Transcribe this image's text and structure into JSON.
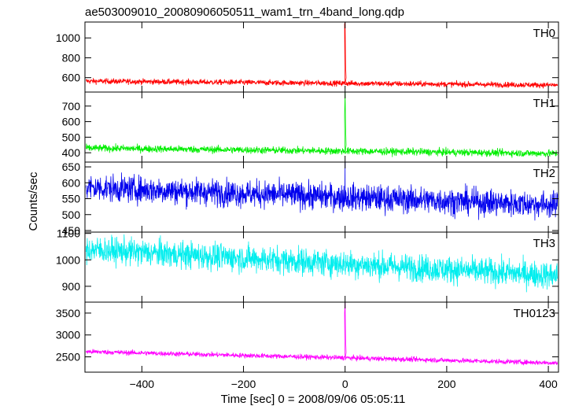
{
  "title": "ae503009010_20080906050511_wam1_trn_4band_long.qdp",
  "xlabel": "Time [sec] 0 = 2008/09/06 05:05:11",
  "ylabel": "Counts/sec",
  "chart_data": {
    "type": "line",
    "title": "ae503009010_20080906050511_wam1_trn_4band_long.qdp",
    "xlabel": "Time [sec] 0 = 2008/09/06 05:05:11",
    "ylabel": "Counts/sec",
    "xlim": [
      -512,
      420
    ],
    "xticks": [
      -400,
      -200,
      0,
      200,
      400
    ],
    "panels": [
      {
        "name": "TH0",
        "color": "#ff0000",
        "ylim": [
          455,
          1160
        ],
        "yticks": [
          600,
          800,
          1000
        ],
        "baseline_start": 565,
        "baseline_end": 525,
        "noise": 30,
        "burst": [
          {
            "x": -2,
            "y": 1140
          },
          {
            "x": 0,
            "y": 1160
          },
          {
            "x": 2,
            "y": 720
          },
          {
            "x": 4,
            "y": 600
          }
        ]
      },
      {
        "name": "TH1",
        "color": "#00ee00",
        "ylim": [
          340,
          790
        ],
        "yticks": [
          400,
          500,
          600,
          700
        ],
        "baseline_start": 430,
        "baseline_end": 395,
        "noise": 25,
        "burst": [
          {
            "x": -2,
            "y": 640
          },
          {
            "x": 0,
            "y": 790
          },
          {
            "x": 2,
            "y": 560
          },
          {
            "x": 4,
            "y": 450
          }
        ]
      },
      {
        "name": "TH2",
        "color": "#0000ee",
        "ylim": [
          445,
          665
        ],
        "yticks": [
          450,
          500,
          550,
          600,
          650
        ],
        "baseline_start": 585,
        "baseline_end": 530,
        "noise": 45,
        "burst": [
          {
            "x": 0,
            "y": 665
          }
        ]
      },
      {
        "name": "TH3",
        "color": "#00eeee",
        "ylim": [
          840,
          1105
        ],
        "yticks": [
          900,
          1000,
          1100
        ],
        "baseline_start": 1040,
        "baseline_end": 940,
        "noise": 55,
        "burst": []
      },
      {
        "name": "TH0123",
        "color": "#ff00ff",
        "ylim": [
          2150,
          3750
        ],
        "yticks": [
          2500,
          3000,
          3500
        ],
        "baseline_start": 2620,
        "baseline_end": 2360,
        "noise": 60,
        "burst": [
          {
            "x": -2,
            "y": 3500
          },
          {
            "x": 0,
            "y": 3750
          },
          {
            "x": 2,
            "y": 2900
          },
          {
            "x": 4,
            "y": 2600
          }
        ]
      }
    ]
  }
}
